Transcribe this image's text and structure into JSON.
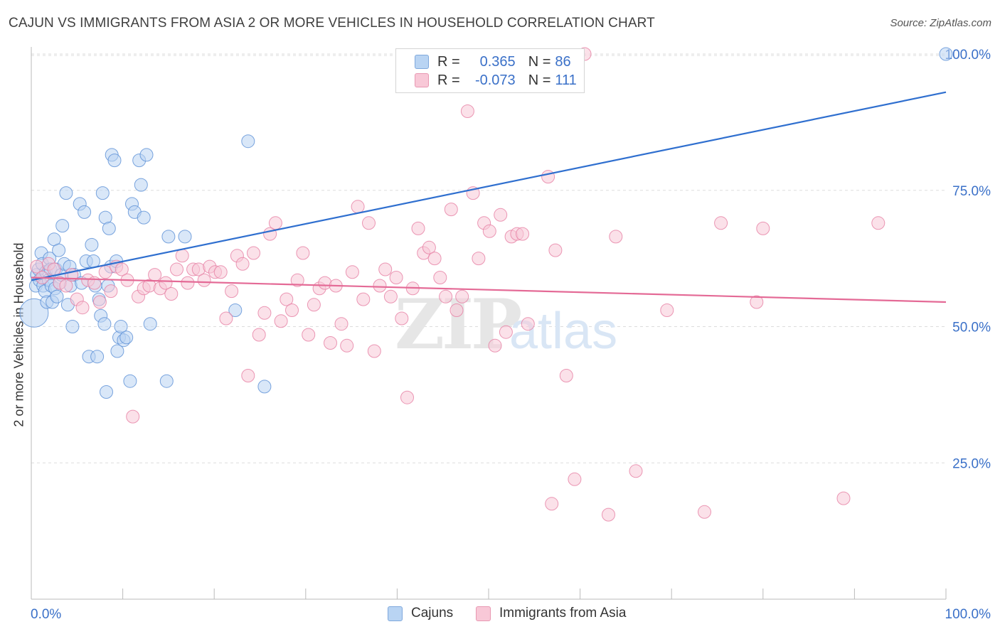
{
  "title": "CAJUN VS IMMIGRANTS FROM ASIA 2 OR MORE VEHICLES IN HOUSEHOLD CORRELATION CHART",
  "source": "Source: ZipAtlas.com",
  "watermark": {
    "zip": "ZIP",
    "atlas": "atlas"
  },
  "legend": {
    "r_label": "R =",
    "n_label": "N =",
    "rows": [
      {
        "name": "Cajuns",
        "r": "0.365",
        "n": "86"
      },
      {
        "name": "Immigrants from Asia",
        "r": "-0.073",
        "n": "111"
      }
    ]
  },
  "colors": {
    "cajuns_fill": "#b9d4f3",
    "cajuns_stroke": "#5a8fd6",
    "cajuns_line": "#2f6fcf",
    "asia_fill": "#f8c8d7",
    "asia_stroke": "#e67ea2",
    "asia_line": "#e46a96",
    "tick_label": "#3a70c8",
    "grid": "#dddddd"
  },
  "chart_data": {
    "type": "scatter",
    "title": "CAJUN VS IMMIGRANTS FROM ASIA 2 OR MORE VEHICLES IN HOUSEHOLD CORRELATION CHART",
    "xlabel": "",
    "ylabel": "2 or more Vehicles in Household",
    "xlim": [
      0,
      100
    ],
    "ylim": [
      0,
      103
    ],
    "x_tick_labels": [
      "0.0%",
      "100.0%"
    ],
    "y_ticks": [
      25,
      50,
      75,
      100
    ],
    "y_tick_labels": [
      "25.0%",
      "50.0%",
      "75.0%",
      "100.0%"
    ],
    "grid": true,
    "legend_position": "top-center",
    "series": [
      {
        "name": "Cajuns",
        "trend": {
          "x": [
            0,
            100
          ],
          "y": [
            58.5,
            93
          ]
        },
        "points": [
          [
            0.3,
            52.5
          ],
          [
            0.5,
            57.5
          ],
          [
            0.6,
            59.5
          ],
          [
            0.8,
            60.5
          ],
          [
            0.9,
            58.5
          ],
          [
            1.1,
            63.5
          ],
          [
            1.2,
            61.5
          ],
          [
            1.3,
            57.5
          ],
          [
            1.5,
            56.5
          ],
          [
            1.6,
            60
          ],
          [
            1.7,
            54.5
          ],
          [
            1.9,
            58.5
          ],
          [
            2.0,
            62.5
          ],
          [
            2.1,
            60.5
          ],
          [
            2.2,
            57.5
          ],
          [
            2.3,
            54.5
          ],
          [
            2.5,
            66
          ],
          [
            2.6,
            57
          ],
          [
            2.7,
            60.5
          ],
          [
            2.8,
            55.5
          ],
          [
            3.0,
            64
          ],
          [
            3.1,
            58
          ],
          [
            3.3,
            59.5
          ],
          [
            3.4,
            68.5
          ],
          [
            3.6,
            61.5
          ],
          [
            3.8,
            74.5
          ],
          [
            4.0,
            54
          ],
          [
            4.2,
            61
          ],
          [
            4.3,
            57.5
          ],
          [
            4.5,
            50
          ],
          [
            4.7,
            59.5
          ],
          [
            5.3,
            72.5
          ],
          [
            5.5,
            58
          ],
          [
            5.8,
            71
          ],
          [
            6.0,
            62
          ],
          [
            6.3,
            44.5
          ],
          [
            6.6,
            65
          ],
          [
            6.8,
            62
          ],
          [
            7.0,
            57.5
          ],
          [
            7.2,
            44.5
          ],
          [
            7.4,
            55
          ],
          [
            7.6,
            52
          ],
          [
            7.8,
            74.5
          ],
          [
            8.0,
            50.5
          ],
          [
            8.1,
            70
          ],
          [
            8.2,
            38
          ],
          [
            8.4,
            57.5
          ],
          [
            8.5,
            68
          ],
          [
            8.7,
            61
          ],
          [
            8.8,
            81.5
          ],
          [
            9.1,
            80.5
          ],
          [
            9.3,
            62
          ],
          [
            9.4,
            45.5
          ],
          [
            9.6,
            48
          ],
          [
            9.8,
            50
          ],
          [
            10.1,
            47.5
          ],
          [
            10.4,
            48
          ],
          [
            10.8,
            40
          ],
          [
            11.0,
            72.5
          ],
          [
            11.3,
            71
          ],
          [
            11.8,
            80.5
          ],
          [
            12.0,
            76
          ],
          [
            12.3,
            70
          ],
          [
            12.6,
            81.5
          ],
          [
            13.0,
            50.5
          ],
          [
            14.8,
            40
          ],
          [
            15.0,
            66.5
          ],
          [
            16.8,
            66.5
          ],
          [
            22.3,
            53
          ],
          [
            23.7,
            84
          ],
          [
            25.5,
            39
          ],
          [
            100.0,
            100.0
          ]
        ]
      },
      {
        "name": "Immigrants from Asia",
        "trend": {
          "x": [
            0,
            100
          ],
          "y": [
            59,
            54.5
          ]
        },
        "points": [
          [
            0.6,
            61
          ],
          [
            1.2,
            59
          ],
          [
            1.9,
            61.5
          ],
          [
            2.5,
            60.5
          ],
          [
            3.1,
            58
          ],
          [
            3.8,
            57.5
          ],
          [
            4.4,
            59.5
          ],
          [
            5.0,
            55
          ],
          [
            5.6,
            53.5
          ],
          [
            6.2,
            58.5
          ],
          [
            6.9,
            58
          ],
          [
            7.5,
            54.5
          ],
          [
            8.1,
            60
          ],
          [
            8.7,
            56.5
          ],
          [
            9.3,
            61
          ],
          [
            9.9,
            60.5
          ],
          [
            10.5,
            58.5
          ],
          [
            11.1,
            33.5
          ],
          [
            11.7,
            55.5
          ],
          [
            12.3,
            57
          ],
          [
            12.9,
            57.5
          ],
          [
            13.5,
            59.5
          ],
          [
            14.1,
            57
          ],
          [
            14.7,
            58
          ],
          [
            15.3,
            56
          ],
          [
            15.9,
            60.5
          ],
          [
            16.5,
            63
          ],
          [
            17.1,
            58
          ],
          [
            17.7,
            60.5
          ],
          [
            18.3,
            60.5
          ],
          [
            18.9,
            58.5
          ],
          [
            19.5,
            61
          ],
          [
            20.1,
            60
          ],
          [
            20.7,
            60
          ],
          [
            21.3,
            51.5
          ],
          [
            21.9,
            56.5
          ],
          [
            22.5,
            63
          ],
          [
            23.1,
            61.5
          ],
          [
            23.7,
            41
          ],
          [
            24.3,
            63.5
          ],
          [
            24.9,
            48.5
          ],
          [
            25.5,
            52.5
          ],
          [
            26.1,
            67
          ],
          [
            26.7,
            69
          ],
          [
            27.3,
            51
          ],
          [
            27.9,
            55
          ],
          [
            28.5,
            53
          ],
          [
            29.1,
            58.5
          ],
          [
            29.7,
            63.5
          ],
          [
            30.3,
            48.5
          ],
          [
            30.9,
            54
          ],
          [
            31.5,
            57
          ],
          [
            32.1,
            58
          ],
          [
            32.7,
            47
          ],
          [
            33.3,
            57.5
          ],
          [
            33.9,
            50.5
          ],
          [
            34.5,
            46.5
          ],
          [
            35.1,
            60
          ],
          [
            35.7,
            72
          ],
          [
            36.3,
            55
          ],
          [
            36.9,
            69
          ],
          [
            37.5,
            45.5
          ],
          [
            38.1,
            57.5
          ],
          [
            38.7,
            60.5
          ],
          [
            39.3,
            55.5
          ],
          [
            39.9,
            59
          ],
          [
            40.5,
            51.5
          ],
          [
            41.1,
            37
          ],
          [
            41.7,
            57
          ],
          [
            42.3,
            68
          ],
          [
            42.9,
            63.5
          ],
          [
            43.5,
            64.5
          ],
          [
            44.1,
            62.5
          ],
          [
            44.7,
            59
          ],
          [
            45.3,
            55.5
          ],
          [
            45.9,
            71.5
          ],
          [
            46.5,
            53
          ],
          [
            47.1,
            55.5
          ],
          [
            47.7,
            89.5
          ],
          [
            48.3,
            74.5
          ],
          [
            48.9,
            62.5
          ],
          [
            49.5,
            69
          ],
          [
            50.1,
            67.5
          ],
          [
            50.7,
            46.5
          ],
          [
            51.3,
            70.5
          ],
          [
            51.9,
            49
          ],
          [
            52.5,
            66.5
          ],
          [
            53.1,
            67
          ],
          [
            53.7,
            67
          ],
          [
            54.3,
            50.5
          ],
          [
            56.5,
            77.5
          ],
          [
            56.9,
            17.5
          ],
          [
            57.3,
            64
          ],
          [
            58.5,
            41
          ],
          [
            59.4,
            22
          ],
          [
            60.5,
            100
          ],
          [
            63.9,
            66.5
          ],
          [
            66.1,
            23.5
          ],
          [
            69.5,
            53
          ],
          [
            73.6,
            16
          ],
          [
            75.4,
            69
          ],
          [
            79.3,
            54.5
          ],
          [
            80.0,
            68
          ],
          [
            88.8,
            18.5
          ],
          [
            92.6,
            69
          ],
          [
            63.1,
            15.5
          ]
        ]
      }
    ]
  }
}
